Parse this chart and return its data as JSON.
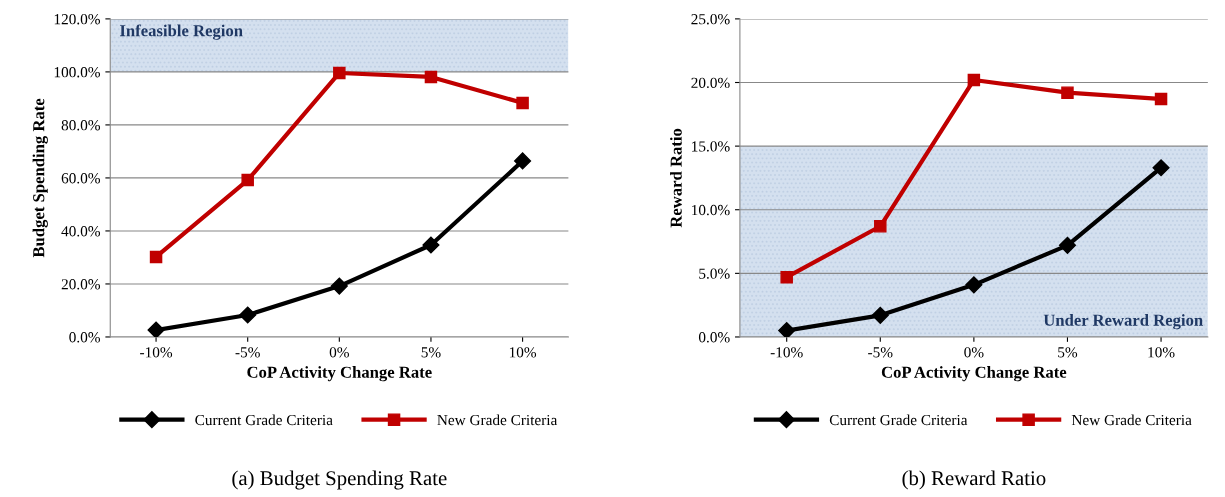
{
  "chart_data": [
    {
      "type": "line",
      "title": "(a) Budget Spending Rate",
      "xlabel": "CoP Activity Change Rate",
      "ylabel": "Budget Spending Rate",
      "categories": [
        "-10%",
        "-5%",
        "0%",
        "5%",
        "10%"
      ],
      "series": [
        {
          "name": "Current Grade Criteria",
          "color": "#000000",
          "marker": "diamond",
          "values": [
            2.6,
            8.3,
            19.2,
            34.7,
            66.4
          ]
        },
        {
          "name": "New Grade Criteria",
          "color": "#c00000",
          "marker": "square",
          "values": [
            30.2,
            59.2,
            99.6,
            98.1,
            88.3
          ]
        }
      ],
      "ylim": [
        0,
        120
      ],
      "yticks": [
        {
          "value": 0,
          "label": "0.0%"
        },
        {
          "value": 20,
          "label": "20.0%"
        },
        {
          "value": 40,
          "label": "40.0%"
        },
        {
          "value": 60,
          "label": "60.0%"
        },
        {
          "value": 80,
          "label": "80.0%"
        },
        {
          "value": 100,
          "label": "100.0%"
        },
        {
          "value": 120,
          "label": "120.0%"
        }
      ],
      "bands": [
        {
          "axis": "y",
          "from": 100,
          "to": 120,
          "label": "Infeasible Region",
          "color": "#b8cce4"
        }
      ],
      "grid": "y",
      "legend": "bottom",
      "line_style": "solid"
    },
    {
      "type": "line",
      "title": "(b) Reward Ratio",
      "xlabel": "CoP Activity Change Rate",
      "ylabel": "Reward Ratio",
      "categories": [
        "-10%",
        "-5%",
        "0%",
        "5%",
        "10%"
      ],
      "series": [
        {
          "name": "Current Grade Criteria",
          "color": "#000000",
          "marker": "diamond",
          "values": [
            0.5,
            1.7,
            4.1,
            7.2,
            13.3
          ]
        },
        {
          "name": "New Grade Criteria",
          "color": "#c00000",
          "marker": "square",
          "values": [
            4.7,
            8.7,
            20.2,
            19.2,
            18.7
          ]
        }
      ],
      "ylim": [
        0,
        25
      ],
      "yticks": [
        {
          "value": 0,
          "label": "0.0%"
        },
        {
          "value": 5,
          "label": "5.0%"
        },
        {
          "value": 10,
          "label": "10.0%"
        },
        {
          "value": 15,
          "label": "15.0%"
        },
        {
          "value": 20,
          "label": "20.0%"
        },
        {
          "value": 25,
          "label": "25.0%"
        }
      ],
      "bands": [
        {
          "axis": "y",
          "from": 0,
          "to": 15,
          "label": "Under Reward Region",
          "color": "#b8cce4"
        }
      ],
      "grid": "y",
      "legend": "bottom",
      "line_style": "solid"
    }
  ]
}
